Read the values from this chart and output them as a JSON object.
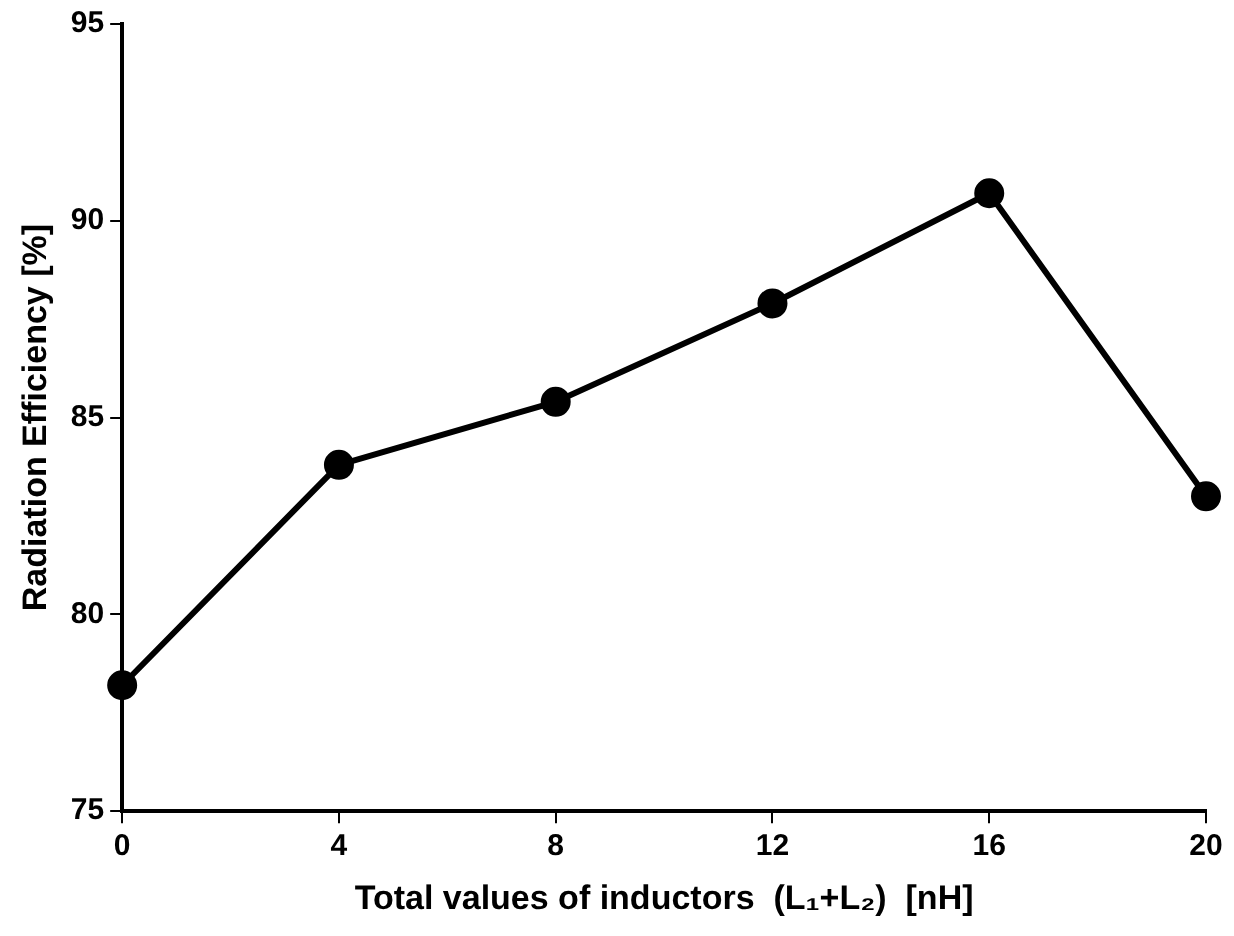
{
  "chart_data": {
    "type": "line",
    "xlabel": "Total values of inductors  (L₁+L₂)  [nH]",
    "ylabel": "Radiation Efficiency [%]",
    "x": [
      0,
      4,
      8,
      12,
      16,
      20
    ],
    "series": [
      {
        "color": "#000000",
        "values": [
          78.2,
          83.8,
          85.4,
          87.9,
          90.7,
          83.0
        ]
      }
    ],
    "xlim": [
      0,
      20
    ],
    "xticks": [
      0,
      4,
      8,
      12,
      16,
      20
    ],
    "ylim": [
      75,
      95
    ],
    "yticks": [
      75,
      80,
      85,
      90,
      95
    ],
    "grid": false,
    "legend": false,
    "marker": "circle",
    "line_style": "solid"
  }
}
